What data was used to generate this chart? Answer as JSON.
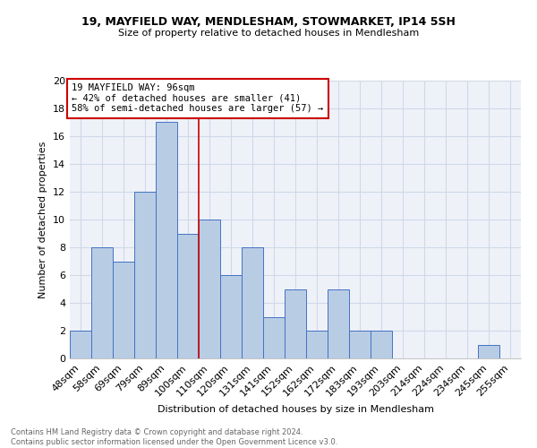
{
  "title1": "19, MAYFIELD WAY, MENDLESHAM, STOWMARKET, IP14 5SH",
  "title2": "Size of property relative to detached houses in Mendlesham",
  "xlabel": "Distribution of detached houses by size in Mendlesham",
  "ylabel": "Number of detached properties",
  "footnote": "Contains HM Land Registry data © Crown copyright and database right 2024.\nContains public sector information licensed under the Open Government Licence v3.0.",
  "categories": [
    "48sqm",
    "58sqm",
    "69sqm",
    "79sqm",
    "89sqm",
    "100sqm",
    "110sqm",
    "120sqm",
    "131sqm",
    "141sqm",
    "152sqm",
    "162sqm",
    "172sqm",
    "183sqm",
    "193sqm",
    "203sqm",
    "214sqm",
    "224sqm",
    "234sqm",
    "245sqm",
    "255sqm"
  ],
  "values": [
    2,
    8,
    7,
    12,
    17,
    9,
    10,
    6,
    8,
    3,
    5,
    2,
    5,
    2,
    2,
    0,
    0,
    0,
    0,
    1,
    0
  ],
  "bar_color": "#b8cce4",
  "bar_edge_color": "#4472c4",
  "property_line_x": 5.5,
  "annotation_text": "19 MAYFIELD WAY: 96sqm\n← 42% of detached houses are smaller (41)\n58% of semi-detached houses are larger (57) →",
  "annotation_box_color": "#ffffff",
  "annotation_box_edge_color": "#cc0000",
  "vline_color": "#cc0000",
  "ylim": [
    0,
    20
  ],
  "yticks": [
    0,
    2,
    4,
    6,
    8,
    10,
    12,
    14,
    16,
    18,
    20
  ],
  "grid_color": "#d0d8e8",
  "background_color": "#eef2f8"
}
